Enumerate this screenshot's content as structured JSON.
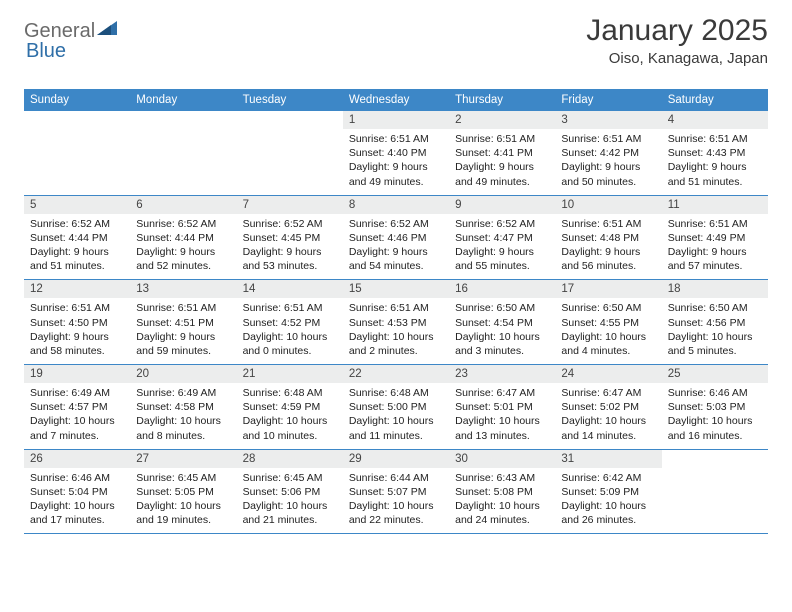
{
  "logo": {
    "general": "General",
    "blue": "Blue"
  },
  "title": "January 2025",
  "location": "Oiso, Kanagawa, Japan",
  "colors": {
    "header_bg": "#3d87c7",
    "header_text": "#ffffff",
    "daynum_bg": "#eceded",
    "border": "#3d87c7",
    "logo_general": "#6a6a6a",
    "logo_blue": "#2f6fa8"
  },
  "weekdays": [
    "Sunday",
    "Monday",
    "Tuesday",
    "Wednesday",
    "Thursday",
    "Friday",
    "Saturday"
  ],
  "weeks": [
    [
      {
        "n": "",
        "sr": "",
        "ss": "",
        "dl1": "",
        "dl2": ""
      },
      {
        "n": "",
        "sr": "",
        "ss": "",
        "dl1": "",
        "dl2": ""
      },
      {
        "n": "",
        "sr": "",
        "ss": "",
        "dl1": "",
        "dl2": ""
      },
      {
        "n": "1",
        "sr": "Sunrise: 6:51 AM",
        "ss": "Sunset: 4:40 PM",
        "dl1": "Daylight: 9 hours",
        "dl2": "and 49 minutes."
      },
      {
        "n": "2",
        "sr": "Sunrise: 6:51 AM",
        "ss": "Sunset: 4:41 PM",
        "dl1": "Daylight: 9 hours",
        "dl2": "and 49 minutes."
      },
      {
        "n": "3",
        "sr": "Sunrise: 6:51 AM",
        "ss": "Sunset: 4:42 PM",
        "dl1": "Daylight: 9 hours",
        "dl2": "and 50 minutes."
      },
      {
        "n": "4",
        "sr": "Sunrise: 6:51 AM",
        "ss": "Sunset: 4:43 PM",
        "dl1": "Daylight: 9 hours",
        "dl2": "and 51 minutes."
      }
    ],
    [
      {
        "n": "5",
        "sr": "Sunrise: 6:52 AM",
        "ss": "Sunset: 4:44 PM",
        "dl1": "Daylight: 9 hours",
        "dl2": "and 51 minutes."
      },
      {
        "n": "6",
        "sr": "Sunrise: 6:52 AM",
        "ss": "Sunset: 4:44 PM",
        "dl1": "Daylight: 9 hours",
        "dl2": "and 52 minutes."
      },
      {
        "n": "7",
        "sr": "Sunrise: 6:52 AM",
        "ss": "Sunset: 4:45 PM",
        "dl1": "Daylight: 9 hours",
        "dl2": "and 53 minutes."
      },
      {
        "n": "8",
        "sr": "Sunrise: 6:52 AM",
        "ss": "Sunset: 4:46 PM",
        "dl1": "Daylight: 9 hours",
        "dl2": "and 54 minutes."
      },
      {
        "n": "9",
        "sr": "Sunrise: 6:52 AM",
        "ss": "Sunset: 4:47 PM",
        "dl1": "Daylight: 9 hours",
        "dl2": "and 55 minutes."
      },
      {
        "n": "10",
        "sr": "Sunrise: 6:51 AM",
        "ss": "Sunset: 4:48 PM",
        "dl1": "Daylight: 9 hours",
        "dl2": "and 56 minutes."
      },
      {
        "n": "11",
        "sr": "Sunrise: 6:51 AM",
        "ss": "Sunset: 4:49 PM",
        "dl1": "Daylight: 9 hours",
        "dl2": "and 57 minutes."
      }
    ],
    [
      {
        "n": "12",
        "sr": "Sunrise: 6:51 AM",
        "ss": "Sunset: 4:50 PM",
        "dl1": "Daylight: 9 hours",
        "dl2": "and 58 minutes."
      },
      {
        "n": "13",
        "sr": "Sunrise: 6:51 AM",
        "ss": "Sunset: 4:51 PM",
        "dl1": "Daylight: 9 hours",
        "dl2": "and 59 minutes."
      },
      {
        "n": "14",
        "sr": "Sunrise: 6:51 AM",
        "ss": "Sunset: 4:52 PM",
        "dl1": "Daylight: 10 hours",
        "dl2": "and 0 minutes."
      },
      {
        "n": "15",
        "sr": "Sunrise: 6:51 AM",
        "ss": "Sunset: 4:53 PM",
        "dl1": "Daylight: 10 hours",
        "dl2": "and 2 minutes."
      },
      {
        "n": "16",
        "sr": "Sunrise: 6:50 AM",
        "ss": "Sunset: 4:54 PM",
        "dl1": "Daylight: 10 hours",
        "dl2": "and 3 minutes."
      },
      {
        "n": "17",
        "sr": "Sunrise: 6:50 AM",
        "ss": "Sunset: 4:55 PM",
        "dl1": "Daylight: 10 hours",
        "dl2": "and 4 minutes."
      },
      {
        "n": "18",
        "sr": "Sunrise: 6:50 AM",
        "ss": "Sunset: 4:56 PM",
        "dl1": "Daylight: 10 hours",
        "dl2": "and 5 minutes."
      }
    ],
    [
      {
        "n": "19",
        "sr": "Sunrise: 6:49 AM",
        "ss": "Sunset: 4:57 PM",
        "dl1": "Daylight: 10 hours",
        "dl2": "and 7 minutes."
      },
      {
        "n": "20",
        "sr": "Sunrise: 6:49 AM",
        "ss": "Sunset: 4:58 PM",
        "dl1": "Daylight: 10 hours",
        "dl2": "and 8 minutes."
      },
      {
        "n": "21",
        "sr": "Sunrise: 6:48 AM",
        "ss": "Sunset: 4:59 PM",
        "dl1": "Daylight: 10 hours",
        "dl2": "and 10 minutes."
      },
      {
        "n": "22",
        "sr": "Sunrise: 6:48 AM",
        "ss": "Sunset: 5:00 PM",
        "dl1": "Daylight: 10 hours",
        "dl2": "and 11 minutes."
      },
      {
        "n": "23",
        "sr": "Sunrise: 6:47 AM",
        "ss": "Sunset: 5:01 PM",
        "dl1": "Daylight: 10 hours",
        "dl2": "and 13 minutes."
      },
      {
        "n": "24",
        "sr": "Sunrise: 6:47 AM",
        "ss": "Sunset: 5:02 PM",
        "dl1": "Daylight: 10 hours",
        "dl2": "and 14 minutes."
      },
      {
        "n": "25",
        "sr": "Sunrise: 6:46 AM",
        "ss": "Sunset: 5:03 PM",
        "dl1": "Daylight: 10 hours",
        "dl2": "and 16 minutes."
      }
    ],
    [
      {
        "n": "26",
        "sr": "Sunrise: 6:46 AM",
        "ss": "Sunset: 5:04 PM",
        "dl1": "Daylight: 10 hours",
        "dl2": "and 17 minutes."
      },
      {
        "n": "27",
        "sr": "Sunrise: 6:45 AM",
        "ss": "Sunset: 5:05 PM",
        "dl1": "Daylight: 10 hours",
        "dl2": "and 19 minutes."
      },
      {
        "n": "28",
        "sr": "Sunrise: 6:45 AM",
        "ss": "Sunset: 5:06 PM",
        "dl1": "Daylight: 10 hours",
        "dl2": "and 21 minutes."
      },
      {
        "n": "29",
        "sr": "Sunrise: 6:44 AM",
        "ss": "Sunset: 5:07 PM",
        "dl1": "Daylight: 10 hours",
        "dl2": "and 22 minutes."
      },
      {
        "n": "30",
        "sr": "Sunrise: 6:43 AM",
        "ss": "Sunset: 5:08 PM",
        "dl1": "Daylight: 10 hours",
        "dl2": "and 24 minutes."
      },
      {
        "n": "31",
        "sr": "Sunrise: 6:42 AM",
        "ss": "Sunset: 5:09 PM",
        "dl1": "Daylight: 10 hours",
        "dl2": "and 26 minutes."
      },
      {
        "n": "",
        "sr": "",
        "ss": "",
        "dl1": "",
        "dl2": ""
      }
    ]
  ]
}
